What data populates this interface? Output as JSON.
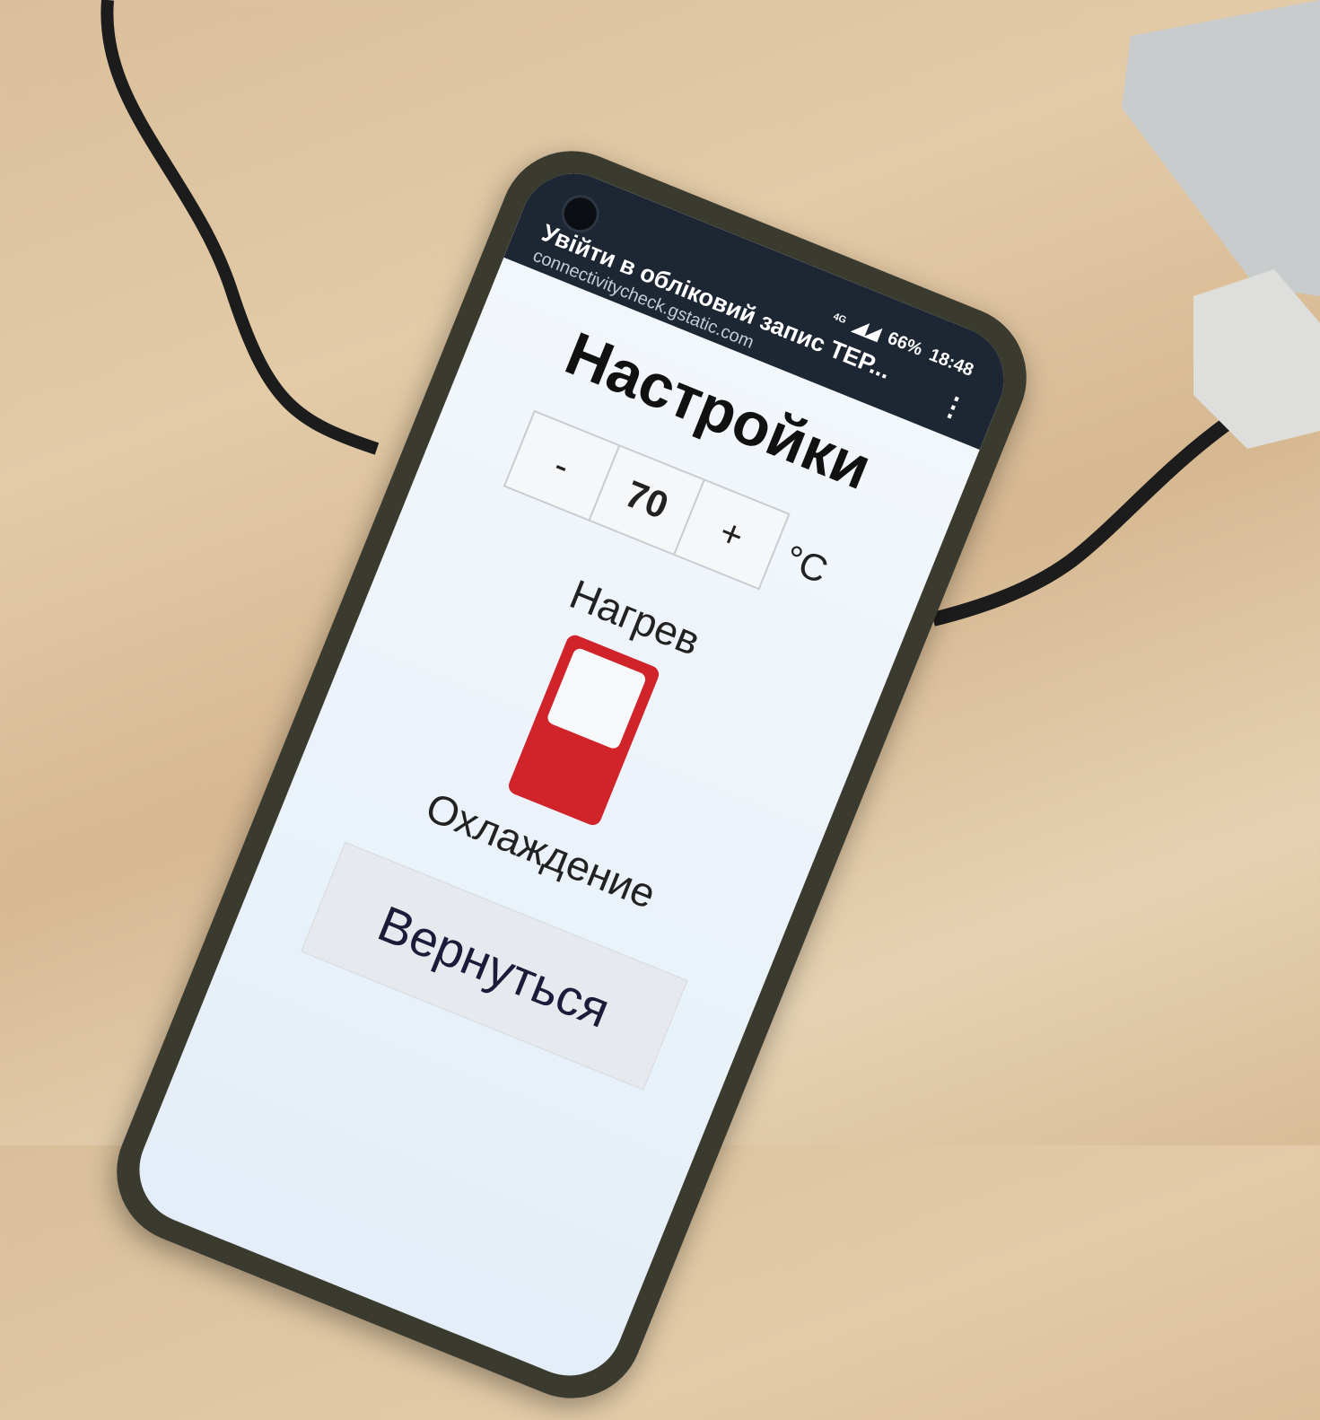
{
  "status_bar": {
    "page_title": "Увійти в обліковий запис ТЕР...",
    "url": "connectivitycheck.gstatic.com",
    "network": "4G",
    "battery": "66%",
    "time": "18:48"
  },
  "settings": {
    "title": "Настройки",
    "decrement": "-",
    "value": 70,
    "increment": "+",
    "unit": "°C",
    "mode_top": "Нагрев",
    "mode_bottom": "Охлаждение",
    "back_button": "Вернуться"
  }
}
